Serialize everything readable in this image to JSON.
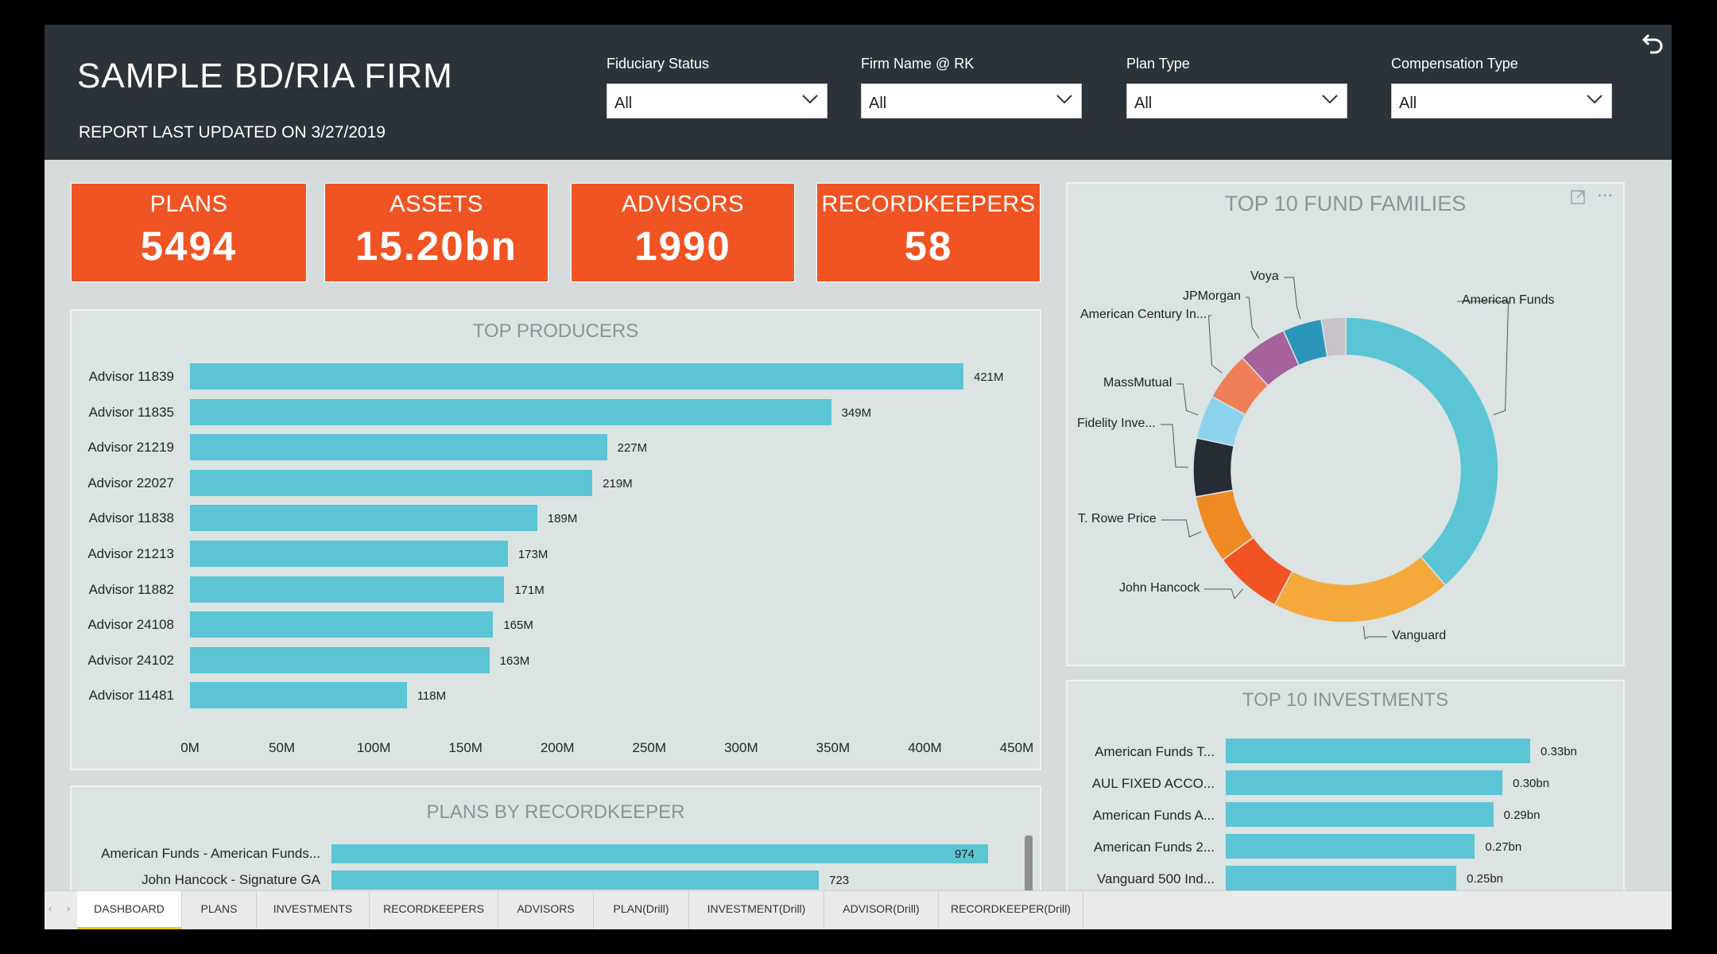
{
  "header": {
    "title": "SAMPLE BD/RIA FIRM",
    "updated": "REPORT LAST UPDATED ON 3/27/2019"
  },
  "filters": [
    {
      "label": "Fiduciary Status",
      "value": "All"
    },
    {
      "label": "Firm Name @ RK",
      "value": "All"
    },
    {
      "label": "Plan Type",
      "value": "All"
    },
    {
      "label": "Compensation Type",
      "value": "All"
    }
  ],
  "kpis": [
    {
      "label": "PLANS",
      "value": "5494"
    },
    {
      "label": "ASSETS",
      "value": "15.20bn"
    },
    {
      "label": "ADVISORS",
      "value": "1990"
    },
    {
      "label": "RECORDKEEPERS",
      "value": "58"
    }
  ],
  "colors": {
    "header_bg": "#2b323a",
    "kpi_bg": "#f05423",
    "bar": "#5bc5d5",
    "panel_bg": "#dbe3e3",
    "active_tab": "#f2c811"
  },
  "top_producers": {
    "title": "TOP PRODUCERS",
    "ticks": [
      "0M",
      "50M",
      "100M",
      "150M",
      "200M",
      "250M",
      "300M",
      "350M",
      "400M",
      "450M"
    ],
    "rows": [
      {
        "label": "Advisor 11839",
        "value": 421,
        "display": "421M"
      },
      {
        "label": "Advisor 11835",
        "value": 349,
        "display": "349M"
      },
      {
        "label": "Advisor 21219",
        "value": 227,
        "display": "227M"
      },
      {
        "label": "Advisor 22027",
        "value": 219,
        "display": "219M"
      },
      {
        "label": "Advisor 11838",
        "value": 189,
        "display": "189M"
      },
      {
        "label": "Advisor 21213",
        "value": 173,
        "display": "173M"
      },
      {
        "label": "Advisor 11882",
        "value": 171,
        "display": "171M"
      },
      {
        "label": "Advisor 24108",
        "value": 165,
        "display": "165M"
      },
      {
        "label": "Advisor 24102",
        "value": 163,
        "display": "163M"
      },
      {
        "label": "Advisor 11481",
        "value": 118,
        "display": "118M"
      }
    ]
  },
  "plans_by_rk": {
    "title": "PLANS BY RECORDKEEPER",
    "rows": [
      {
        "label": "American Funds - American Funds...",
        "value": 974,
        "display": "974"
      },
      {
        "label": "John Hancock - Signature GA",
        "value": 723,
        "display": "723"
      }
    ]
  },
  "fund_families": {
    "title": "TOP 10 FUND FAMILIES",
    "slices": [
      {
        "name": "American Funds",
        "value": 37.5,
        "color": "#5bc5d5"
      },
      {
        "name": "Vanguard",
        "value": 18.5,
        "color": "#f6a93b"
      },
      {
        "name": "John Hancock",
        "value": 7.0,
        "color": "#f05423"
      },
      {
        "name": "T. Rowe Price",
        "value": 7.0,
        "color": "#f08a24"
      },
      {
        "name": "Fidelity Inve...",
        "value": 6.0,
        "color": "#252c33"
      },
      {
        "name": "MassMutual",
        "value": 4.5,
        "color": "#8dd3ee"
      },
      {
        "name": "American Century In...",
        "value": 5.0,
        "color": "#ef7f58"
      },
      {
        "name": "JPMorgan",
        "value": 5.0,
        "color": "#a7619b"
      },
      {
        "name": "Voya",
        "value": 4.0,
        "color": "#2b96b9"
      },
      {
        "name": "",
        "value": 2.5,
        "color": "#c9c2c8"
      }
    ]
  },
  "top_investments": {
    "title": "TOP 10 INVESTMENTS",
    "rows": [
      {
        "label": "American Funds T...",
        "value": 0.33,
        "display": "0.33bn"
      },
      {
        "label": "AUL FIXED ACCO...",
        "value": 0.3,
        "display": "0.30bn"
      },
      {
        "label": "American Funds A...",
        "value": 0.29,
        "display": "0.29bn"
      },
      {
        "label": "American Funds 2...",
        "value": 0.27,
        "display": "0.27bn"
      },
      {
        "label": "Vanguard 500 Ind...",
        "value": 0.25,
        "display": "0.25bn"
      }
    ]
  },
  "tabs": [
    "DASHBOARD",
    "PLANS",
    "INVESTMENTS",
    "RECORDKEEPERS",
    "ADVISORS",
    "PLAN(Drill)",
    "INVESTMENT(Drill)",
    "ADVISOR(Drill)",
    "RECORDKEEPER(Drill)"
  ],
  "active_tab": "DASHBOARD"
}
